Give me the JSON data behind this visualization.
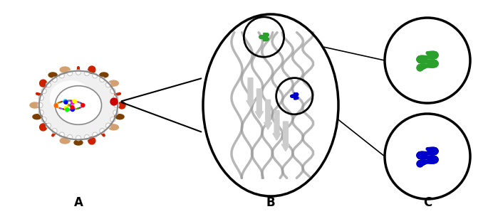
{
  "fig_width": 6.85,
  "fig_height": 3.01,
  "background_color": "#ffffff",
  "label_A": "A",
  "label_B": "B",
  "label_C": "C",
  "label_fontsize": 12,
  "green_color": "#2ca02c",
  "blue_color": "#0000cc",
  "gray_color": "#aaaaaa",
  "dark_gray": "#555555",
  "red_color": "#cc0000",
  "brown_color": "#8B4513",
  "spike_red": "#cc2200",
  "spike_tan": "#d4a070",
  "spike_brown": "#7B3F00"
}
